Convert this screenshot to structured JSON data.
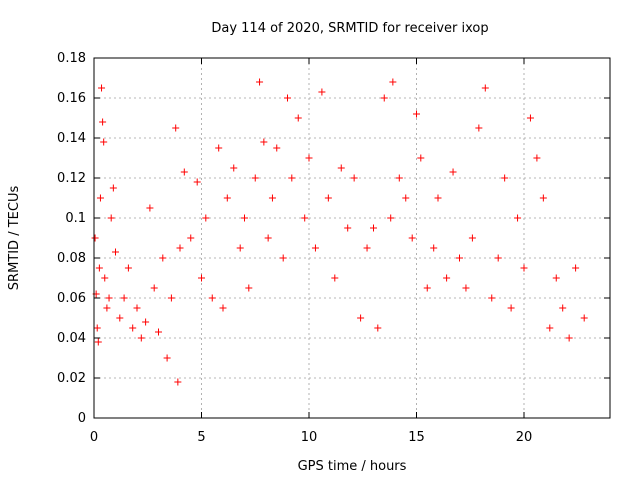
{
  "chart_data": {
    "type": "scatter",
    "title": "Day 114 of 2020, SRMTID for receiver ixop",
    "xlabel": "GPS time / hours",
    "ylabel": "SRMTID / TECUs",
    "xlim": [
      0,
      24
    ],
    "ylim": [
      0,
      0.18
    ],
    "xticks": [
      0,
      5,
      10,
      15,
      20
    ],
    "xtick_labels": [
      "0",
      "5",
      "10",
      "15",
      "20"
    ],
    "yticks": [
      0,
      0.02,
      0.04,
      0.06,
      0.08,
      0.1,
      0.12,
      0.14,
      0.16,
      0.18
    ],
    "ytick_labels": [
      "0",
      "0.02",
      "0.04",
      "0.06",
      "0.08",
      "0.1",
      "0.12",
      "0.14",
      "0.16",
      "0.18"
    ],
    "grid": true,
    "marker": "plus",
    "color": "#ff0000",
    "series": [
      {
        "x_range": [
          0.0,
          22.9
        ],
        "points": [
          [
            0.05,
            0.09
          ],
          [
            0.1,
            0.062
          ],
          [
            0.15,
            0.045
          ],
          [
            0.2,
            0.038
          ],
          [
            0.25,
            0.075
          ],
          [
            0.3,
            0.11
          ],
          [
            0.35,
            0.165
          ],
          [
            0.4,
            0.148
          ],
          [
            0.45,
            0.138
          ],
          [
            0.5,
            0.07
          ],
          [
            0.6,
            0.055
          ],
          [
            0.7,
            0.06
          ],
          [
            0.8,
            0.1
          ],
          [
            0.9,
            0.115
          ],
          [
            1.0,
            0.083
          ],
          [
            1.2,
            0.05
          ],
          [
            1.4,
            0.06
          ],
          [
            1.6,
            0.075
          ],
          [
            1.8,
            0.045
          ],
          [
            2.0,
            0.055
          ],
          [
            2.2,
            0.04
          ],
          [
            2.4,
            0.048
          ],
          [
            2.6,
            0.105
          ],
          [
            2.8,
            0.065
          ],
          [
            3.0,
            0.043
          ],
          [
            3.2,
            0.08
          ],
          [
            3.4,
            0.03
          ],
          [
            3.6,
            0.06
          ],
          [
            3.8,
            0.145
          ],
          [
            3.9,
            0.018
          ],
          [
            4.0,
            0.085
          ],
          [
            4.2,
            0.123
          ],
          [
            4.5,
            0.09
          ],
          [
            4.8,
            0.118
          ],
          [
            5.0,
            0.07
          ],
          [
            5.2,
            0.1
          ],
          [
            5.5,
            0.06
          ],
          [
            5.8,
            0.135
          ],
          [
            6.0,
            0.055
          ],
          [
            6.2,
            0.11
          ],
          [
            6.5,
            0.125
          ],
          [
            6.8,
            0.085
          ],
          [
            7.0,
            0.1
          ],
          [
            7.2,
            0.065
          ],
          [
            7.5,
            0.12
          ],
          [
            7.7,
            0.168
          ],
          [
            7.9,
            0.138
          ],
          [
            8.1,
            0.09
          ],
          [
            8.3,
            0.11
          ],
          [
            8.5,
            0.135
          ],
          [
            8.8,
            0.08
          ],
          [
            9.0,
            0.16
          ],
          [
            9.2,
            0.12
          ],
          [
            9.5,
            0.15
          ],
          [
            9.8,
            0.1
          ],
          [
            10.0,
            0.13
          ],
          [
            10.3,
            0.085
          ],
          [
            10.6,
            0.163
          ],
          [
            10.9,
            0.11
          ],
          [
            11.2,
            0.07
          ],
          [
            11.5,
            0.125
          ],
          [
            11.8,
            0.095
          ],
          [
            12.1,
            0.12
          ],
          [
            12.4,
            0.05
          ],
          [
            12.7,
            0.085
          ],
          [
            13.0,
            0.095
          ],
          [
            13.2,
            0.045
          ],
          [
            13.5,
            0.16
          ],
          [
            13.8,
            0.1
          ],
          [
            13.9,
            0.168
          ],
          [
            14.2,
            0.12
          ],
          [
            14.5,
            0.11
          ],
          [
            14.8,
            0.09
          ],
          [
            15.0,
            0.152
          ],
          [
            15.2,
            0.13
          ],
          [
            15.5,
            0.065
          ],
          [
            15.8,
            0.085
          ],
          [
            16.0,
            0.11
          ],
          [
            16.4,
            0.07
          ],
          [
            16.7,
            0.123
          ],
          [
            17.0,
            0.08
          ],
          [
            17.3,
            0.065
          ],
          [
            17.6,
            0.09
          ],
          [
            17.9,
            0.145
          ],
          [
            18.2,
            0.165
          ],
          [
            18.5,
            0.06
          ],
          [
            18.8,
            0.08
          ],
          [
            19.1,
            0.12
          ],
          [
            19.4,
            0.055
          ],
          [
            19.7,
            0.1
          ],
          [
            20.0,
            0.075
          ],
          [
            20.3,
            0.15
          ],
          [
            20.6,
            0.13
          ],
          [
            20.9,
            0.11
          ],
          [
            21.2,
            0.045
          ],
          [
            21.5,
            0.07
          ],
          [
            21.8,
            0.055
          ],
          [
            22.1,
            0.04
          ],
          [
            22.4,
            0.075
          ],
          [
            22.8,
            0.05
          ]
        ]
      }
    ]
  }
}
